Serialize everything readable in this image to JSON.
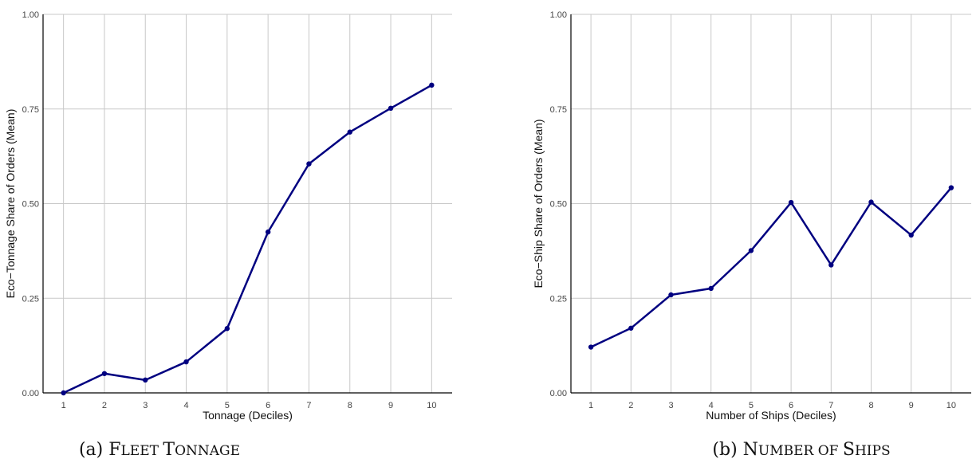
{
  "colors": {
    "line": "#000080",
    "grid": "#c8c8c8",
    "axis": "#000000"
  },
  "chart_data": [
    {
      "type": "line",
      "xlabel": "Tonnage (Deciles)",
      "ylabel": "Eco−Tonnage Share of Orders (Mean)",
      "x": [
        1,
        2,
        3,
        4,
        5,
        6,
        7,
        8,
        9,
        10
      ],
      "series": [
        {
          "values": [
            0.0,
            0.051,
            0.034,
            0.082,
            0.17,
            0.425,
            0.605,
            0.689,
            0.752,
            0.813
          ]
        }
      ],
      "xlim": [
        0.5,
        10.5
      ],
      "ylim": [
        0,
        1
      ],
      "yticks": [
        "0.00",
        "0.25",
        "0.50",
        "0.75",
        "1.00"
      ],
      "xticks": [
        "1",
        "2",
        "3",
        "4",
        "5",
        "6",
        "7",
        "8",
        "9",
        "10"
      ],
      "grid": true,
      "caption_prefix": "(a) ",
      "caption_big1": "F",
      "caption_small1": "LEET ",
      "caption_big2": "T",
      "caption_small2": "ONNAGE"
    },
    {
      "type": "line",
      "xlabel": "Number of Ships (Deciles)",
      "ylabel": "Eco−Ship Share of Orders (Mean)",
      "x": [
        1,
        2,
        3,
        4,
        5,
        6,
        7,
        8,
        9,
        10
      ],
      "series": [
        {
          "values": [
            0.121,
            0.171,
            0.259,
            0.276,
            0.376,
            0.503,
            0.338,
            0.504,
            0.417,
            0.542
          ]
        }
      ],
      "xlim": [
        0.5,
        10.5
      ],
      "ylim": [
        0,
        1
      ],
      "yticks": [
        "0.00",
        "0.25",
        "0.50",
        "0.75",
        "1.00"
      ],
      "xticks": [
        "1",
        "2",
        "3",
        "4",
        "5",
        "6",
        "7",
        "8",
        "9",
        "10"
      ],
      "grid": true,
      "caption_prefix": "(b) ",
      "caption_big1": "N",
      "caption_small1": "UMBER OF ",
      "caption_big2": "S",
      "caption_small2": "HIPS"
    }
  ]
}
